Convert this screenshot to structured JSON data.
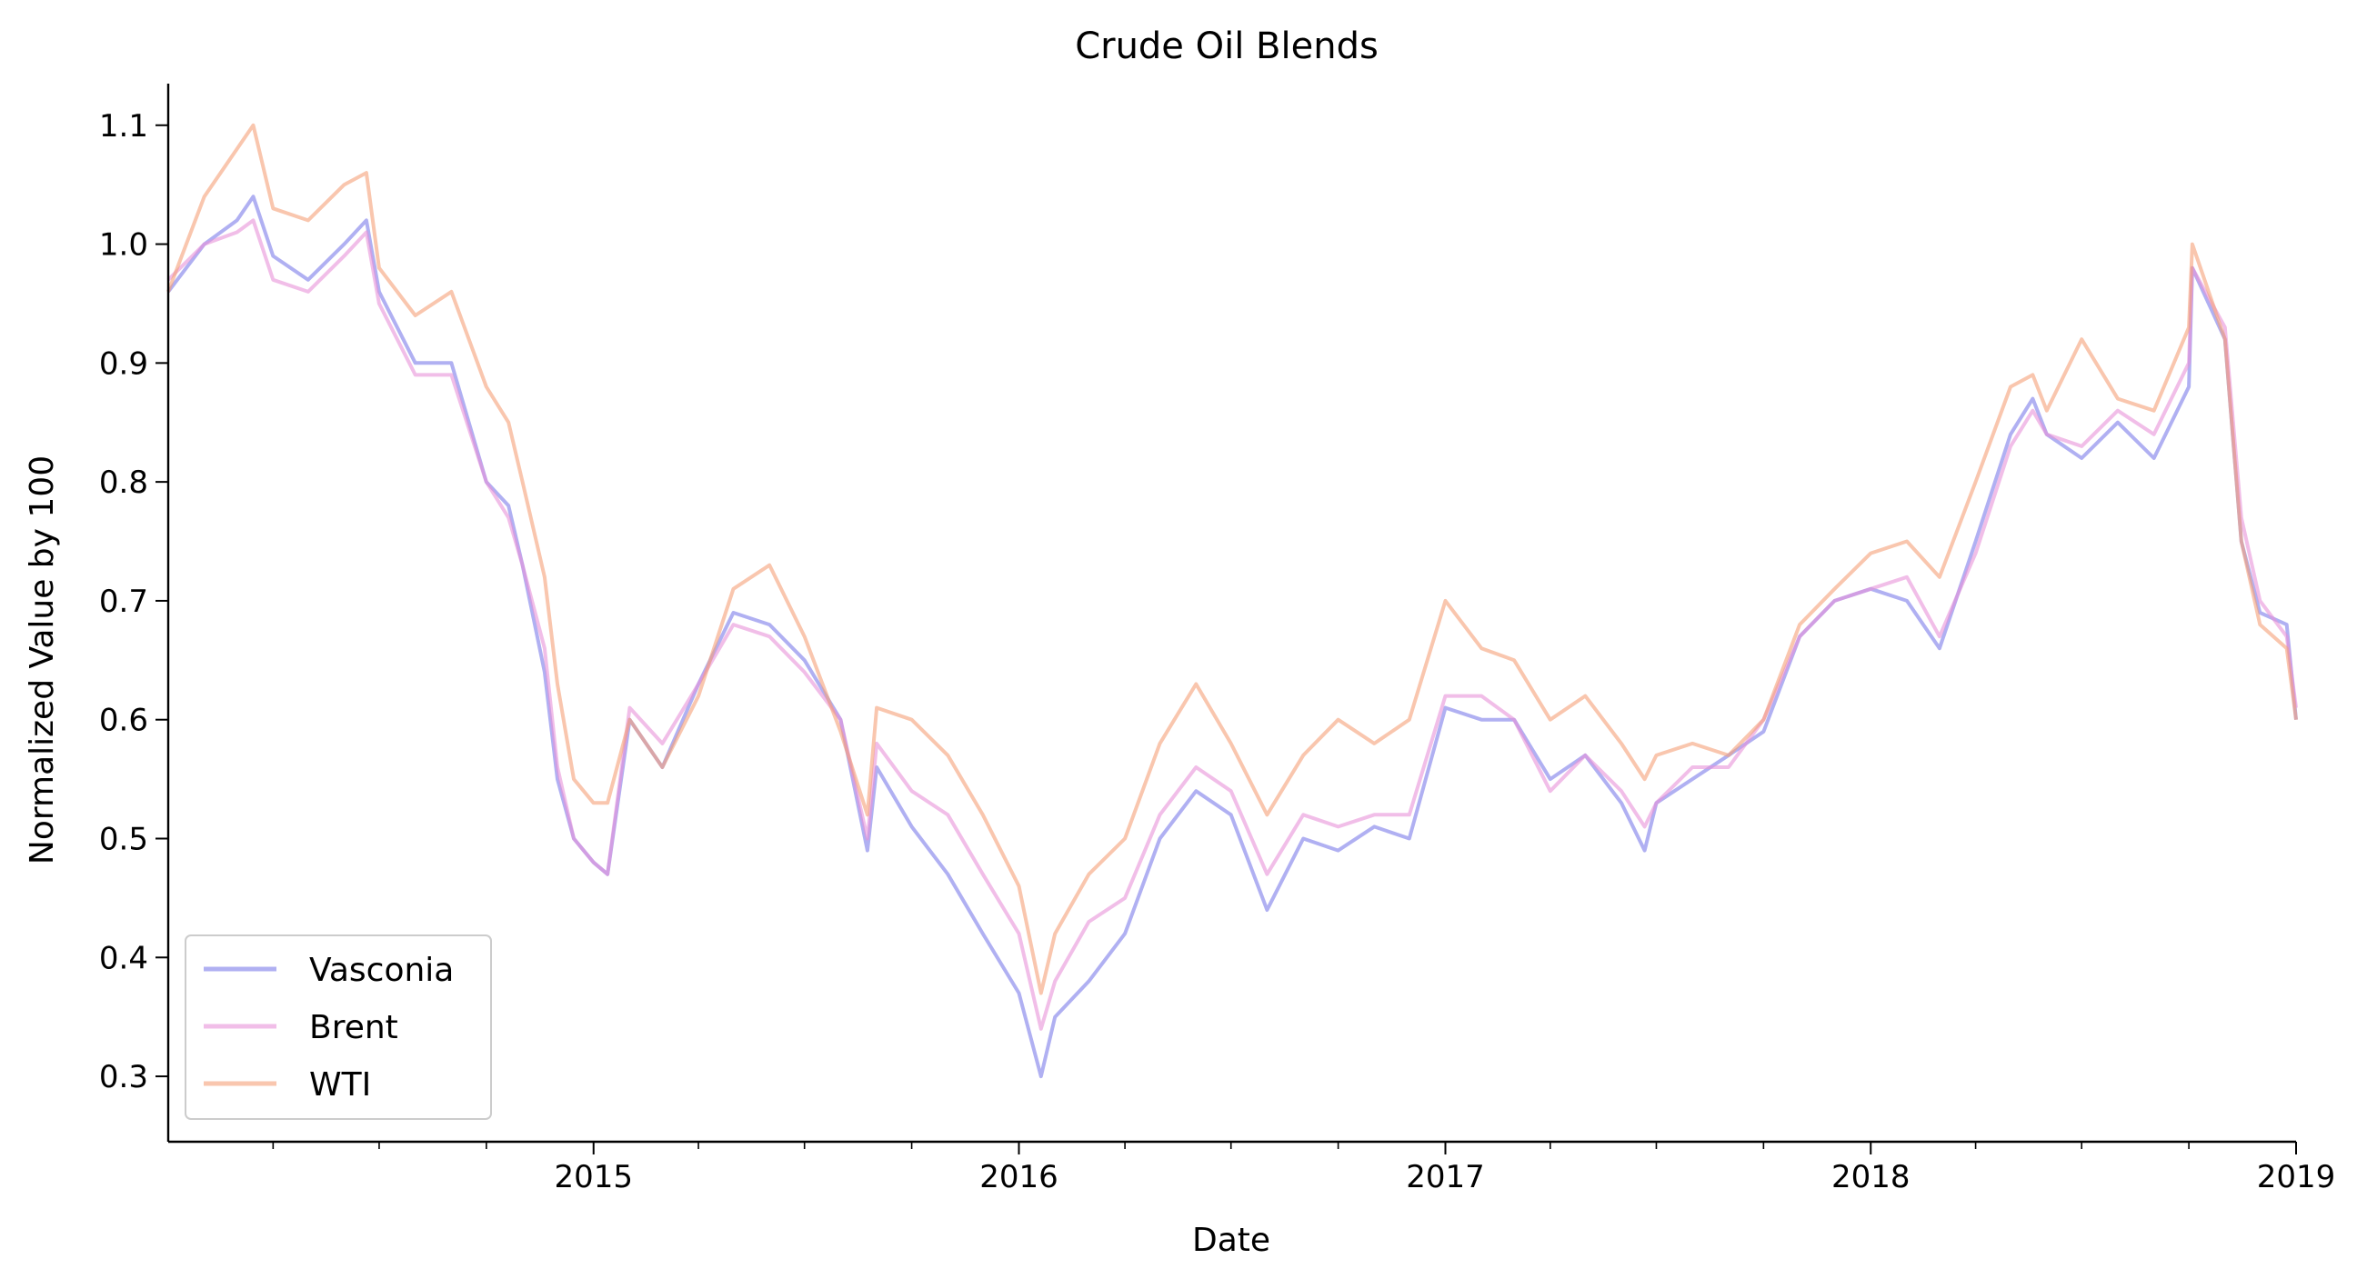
{
  "chart_data": {
    "type": "line",
    "title": "Crude Oil Blends",
    "xlabel": "Date",
    "ylabel": "Normalized Value by 100",
    "xlim": [
      "2014-01-01",
      "2019-01-01"
    ],
    "ylim": [
      0.245,
      1.135
    ],
    "x_ticks": [
      {
        "date": "2015-01-01",
        "label": "2015"
      },
      {
        "date": "2016-01-01",
        "label": "2016"
      },
      {
        "date": "2017-01-01",
        "label": "2017"
      },
      {
        "date": "2018-01-01",
        "label": "2018"
      },
      {
        "date": "2019-01-01",
        "label": "2019"
      }
    ],
    "y_ticks": [
      {
        "value": 0.3,
        "label": "0.3"
      },
      {
        "value": 0.4,
        "label": "0.4"
      },
      {
        "value": 0.5,
        "label": "0.5"
      },
      {
        "value": 0.6,
        "label": "0.6"
      },
      {
        "value": 0.7,
        "label": "0.7"
      },
      {
        "value": 0.8,
        "label": "0.8"
      },
      {
        "value": 0.9,
        "label": "0.9"
      },
      {
        "value": 1.0,
        "label": "1.0"
      },
      {
        "value": 1.1,
        "label": "1.1"
      }
    ],
    "grid": false,
    "legend_position": "lower-left",
    "series": [
      {
        "name": "Vasconia",
        "color": "#7b7bea",
        "x": [
          "2014-01-01",
          "2014-02-01",
          "2014-03-01",
          "2014-03-15",
          "2014-04-01",
          "2014-05-01",
          "2014-06-01",
          "2014-06-20",
          "2014-07-01",
          "2014-08-01",
          "2014-09-01",
          "2014-10-01",
          "2014-10-20",
          "2014-11-01",
          "2014-11-20",
          "2014-12-01",
          "2014-12-15",
          "2015-01-01",
          "2015-01-13",
          "2015-02-01",
          "2015-03-01",
          "2015-04-01",
          "2015-05-01",
          "2015-06-01",
          "2015-07-01",
          "2015-08-01",
          "2015-08-24",
          "2015-09-01",
          "2015-10-01",
          "2015-11-01",
          "2015-12-01",
          "2016-01-01",
          "2016-01-20",
          "2016-02-01",
          "2016-03-01",
          "2016-04-01",
          "2016-05-01",
          "2016-06-01",
          "2016-07-01",
          "2016-08-01",
          "2016-09-01",
          "2016-10-01",
          "2016-11-01",
          "2016-12-01",
          "2017-01-01",
          "2017-02-01",
          "2017-03-01",
          "2017-04-01",
          "2017-05-01",
          "2017-06-01",
          "2017-06-21",
          "2017-07-01",
          "2017-08-01",
          "2017-09-01",
          "2017-10-01",
          "2017-11-01",
          "2017-12-01",
          "2018-01-01",
          "2018-02-01",
          "2018-03-01",
          "2018-04-01",
          "2018-05-01",
          "2018-05-20",
          "2018-06-01",
          "2018-07-01",
          "2018-08-01",
          "2018-09-01",
          "2018-10-01",
          "2018-10-04",
          "2018-11-01",
          "2018-11-15",
          "2018-12-01",
          "2018-12-24",
          "2019-01-01"
        ],
        "values": [
          0.96,
          1.0,
          1.02,
          1.04,
          0.99,
          0.97,
          1.0,
          1.02,
          0.96,
          0.9,
          0.9,
          0.8,
          0.78,
          0.73,
          0.64,
          0.55,
          0.5,
          0.48,
          0.47,
          0.6,
          0.56,
          0.63,
          0.69,
          0.68,
          0.65,
          0.6,
          0.49,
          0.56,
          0.51,
          0.47,
          0.42,
          0.37,
          0.3,
          0.35,
          0.38,
          0.42,
          0.5,
          0.54,
          0.52,
          0.44,
          0.5,
          0.49,
          0.51,
          0.5,
          0.61,
          0.6,
          0.6,
          0.55,
          0.57,
          0.53,
          0.49,
          0.53,
          0.55,
          0.57,
          0.59,
          0.67,
          0.7,
          0.71,
          0.7,
          0.66,
          0.75,
          0.84,
          0.87,
          0.84,
          0.82,
          0.85,
          0.82,
          0.88,
          0.98,
          0.92,
          0.75,
          0.69,
          0.68,
          0.6
        ]
      },
      {
        "name": "Brent",
        "color": "#e892d8",
        "x": [
          "2014-01-01",
          "2014-02-01",
          "2014-03-01",
          "2014-03-15",
          "2014-04-01",
          "2014-05-01",
          "2014-06-01",
          "2014-06-20",
          "2014-07-01",
          "2014-08-01",
          "2014-09-01",
          "2014-10-01",
          "2014-10-20",
          "2014-11-01",
          "2014-11-20",
          "2014-12-01",
          "2014-12-15",
          "2015-01-01",
          "2015-01-13",
          "2015-02-01",
          "2015-03-01",
          "2015-04-01",
          "2015-05-01",
          "2015-06-01",
          "2015-07-01",
          "2015-08-01",
          "2015-08-24",
          "2015-09-01",
          "2015-10-01",
          "2015-11-01",
          "2015-12-01",
          "2016-01-01",
          "2016-01-20",
          "2016-02-01",
          "2016-03-01",
          "2016-04-01",
          "2016-05-01",
          "2016-06-01",
          "2016-07-01",
          "2016-08-01",
          "2016-09-01",
          "2016-10-01",
          "2016-11-01",
          "2016-12-01",
          "2017-01-01",
          "2017-02-01",
          "2017-03-01",
          "2017-04-01",
          "2017-05-01",
          "2017-06-01",
          "2017-06-21",
          "2017-07-01",
          "2017-08-01",
          "2017-09-01",
          "2017-10-01",
          "2017-11-01",
          "2017-12-01",
          "2018-01-01",
          "2018-02-01",
          "2018-03-01",
          "2018-04-01",
          "2018-05-01",
          "2018-05-20",
          "2018-06-01",
          "2018-07-01",
          "2018-08-01",
          "2018-09-01",
          "2018-10-01",
          "2018-10-04",
          "2018-11-01",
          "2018-11-15",
          "2018-12-01",
          "2018-12-24",
          "2019-01-01"
        ],
        "values": [
          0.97,
          1.0,
          1.01,
          1.02,
          0.97,
          0.96,
          0.99,
          1.01,
          0.95,
          0.89,
          0.89,
          0.8,
          0.77,
          0.73,
          0.66,
          0.56,
          0.5,
          0.48,
          0.47,
          0.61,
          0.58,
          0.63,
          0.68,
          0.67,
          0.64,
          0.6,
          0.5,
          0.58,
          0.54,
          0.52,
          0.47,
          0.42,
          0.34,
          0.38,
          0.43,
          0.45,
          0.52,
          0.56,
          0.54,
          0.47,
          0.52,
          0.51,
          0.52,
          0.52,
          0.62,
          0.62,
          0.6,
          0.54,
          0.57,
          0.54,
          0.51,
          0.53,
          0.56,
          0.56,
          0.6,
          0.67,
          0.7,
          0.71,
          0.72,
          0.67,
          0.74,
          0.83,
          0.86,
          0.84,
          0.83,
          0.86,
          0.84,
          0.9,
          0.98,
          0.93,
          0.77,
          0.7,
          0.67,
          0.61
        ]
      },
      {
        "name": "WTI",
        "color": "#f5a078",
        "x": [
          "2014-01-01",
          "2014-02-01",
          "2014-03-01",
          "2014-03-15",
          "2014-04-01",
          "2014-05-01",
          "2014-06-01",
          "2014-06-20",
          "2014-07-01",
          "2014-08-01",
          "2014-09-01",
          "2014-10-01",
          "2014-10-20",
          "2014-11-01",
          "2014-11-20",
          "2014-12-01",
          "2014-12-15",
          "2015-01-01",
          "2015-01-13",
          "2015-02-01",
          "2015-03-01",
          "2015-04-01",
          "2015-05-01",
          "2015-06-01",
          "2015-07-01",
          "2015-08-01",
          "2015-08-24",
          "2015-09-01",
          "2015-10-01",
          "2015-11-01",
          "2015-12-01",
          "2016-01-01",
          "2016-01-20",
          "2016-02-01",
          "2016-03-01",
          "2016-04-01",
          "2016-05-01",
          "2016-06-01",
          "2016-07-01",
          "2016-08-01",
          "2016-09-01",
          "2016-10-01",
          "2016-11-01",
          "2016-12-01",
          "2017-01-01",
          "2017-02-01",
          "2017-03-01",
          "2017-04-01",
          "2017-05-01",
          "2017-06-01",
          "2017-06-21",
          "2017-07-01",
          "2017-08-01",
          "2017-09-01",
          "2017-10-01",
          "2017-11-01",
          "2017-12-01",
          "2018-01-01",
          "2018-02-01",
          "2018-03-01",
          "2018-04-01",
          "2018-05-01",
          "2018-05-20",
          "2018-06-01",
          "2018-07-01",
          "2018-08-01",
          "2018-09-01",
          "2018-10-01",
          "2018-10-04",
          "2018-11-01",
          "2018-11-15",
          "2018-12-01",
          "2018-12-24",
          "2019-01-01"
        ],
        "values": [
          0.96,
          1.04,
          1.08,
          1.1,
          1.03,
          1.02,
          1.05,
          1.06,
          0.98,
          0.94,
          0.96,
          0.88,
          0.85,
          0.8,
          0.72,
          0.63,
          0.55,
          0.53,
          0.53,
          0.6,
          0.56,
          0.62,
          0.71,
          0.73,
          0.67,
          0.59,
          0.52,
          0.61,
          0.6,
          0.57,
          0.52,
          0.46,
          0.37,
          0.42,
          0.47,
          0.5,
          0.58,
          0.63,
          0.58,
          0.52,
          0.57,
          0.6,
          0.58,
          0.6,
          0.7,
          0.66,
          0.65,
          0.6,
          0.62,
          0.58,
          0.55,
          0.57,
          0.58,
          0.57,
          0.6,
          0.68,
          0.71,
          0.74,
          0.75,
          0.72,
          0.8,
          0.88,
          0.89,
          0.86,
          0.92,
          0.87,
          0.86,
          0.93,
          1.0,
          0.92,
          0.75,
          0.68,
          0.66,
          0.6
        ]
      }
    ]
  }
}
